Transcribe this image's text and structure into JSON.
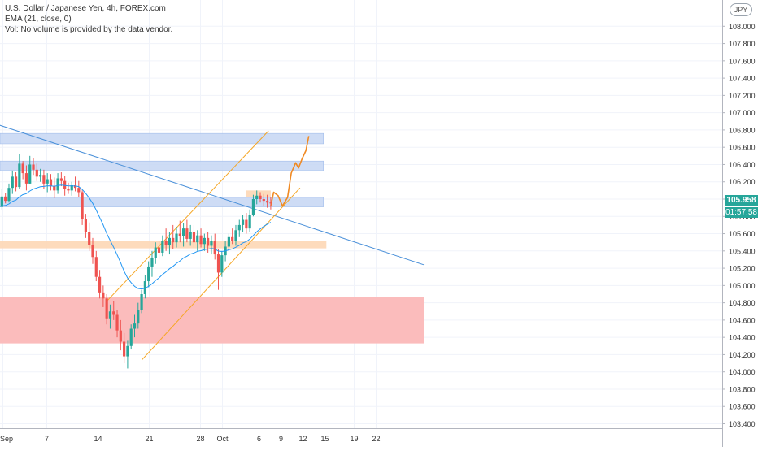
{
  "legend": {
    "title": "U.S. Dollar / Japanese Yen, 4h, FOREX.com",
    "ema": "EMA (21, close, 0)",
    "vol": "Vol: No volume is provided by the data vendor."
  },
  "currency_badge": "JPY",
  "last_price": "105.958",
  "countdown": "01:57:58",
  "colors": {
    "up": "#26a69a",
    "down": "#ef5350",
    "ema": "#2196f3",
    "trendline": "#4a90d9",
    "channel": "#f5a623",
    "resistance_zone": "#c9d9f5",
    "support_zone": "#fdd7b5",
    "demand_zone": "#fbb8b8",
    "projection": "#f08a24"
  },
  "chart_data": {
    "type": "candlestick",
    "symbol": "USDJPY",
    "timeframe": "4h",
    "x_tick_labels": [
      "Sep",
      "7",
      "14",
      "21",
      "28",
      "Oct",
      "6",
      "9",
      "12",
      "15",
      "19",
      "22"
    ],
    "x_ticks_day_index": [
      0,
      6,
      13,
      20,
      27,
      30,
      35,
      38,
      41,
      44,
      48,
      51
    ],
    "y_range": [
      103.3,
      108.25
    ],
    "y_ticks": [
      "108.000",
      "107.800",
      "107.600",
      "107.400",
      "107.200",
      "107.000",
      "106.800",
      "106.600",
      "106.400",
      "106.200",
      "106.000",
      "105.800",
      "105.600",
      "105.400",
      "105.200",
      "105.000",
      "104.800",
      "104.600",
      "104.400",
      "104.200",
      "104.000",
      "103.800",
      "103.600",
      "103.400"
    ],
    "zones": [
      {
        "kind": "resistance",
        "y_low": 106.64,
        "y_high": 106.76,
        "x_end_day": 43.8
      },
      {
        "kind": "resistance",
        "y_low": 106.33,
        "y_high": 106.44,
        "x_end_day": 43.8
      },
      {
        "kind": "resistance",
        "y_low": 105.91,
        "y_high": 106.02,
        "x_end_day": 43.8
      },
      {
        "kind": "support",
        "y_low": 105.43,
        "y_high": 105.52,
        "x_end_day": 44.2
      },
      {
        "kind": "supply",
        "y_low": 106.02,
        "y_high": 106.1,
        "x_start_day": 33.2,
        "x_end_day": 36.6
      },
      {
        "kind": "demand",
        "y_low": 104.33,
        "y_high": 104.87,
        "x_end_day": 57.5
      }
    ],
    "trendline": {
      "from": [
        -0.6,
        106.86
      ],
      "to": [
        57.5,
        105.24
      ]
    },
    "channel": {
      "upper": {
        "from": [
          14.1,
          104.81
        ],
        "to": [
          36.3,
          106.79
        ]
      },
      "lower": {
        "from": [
          19.0,
          104.14
        ],
        "to": [
          40.6,
          106.13
        ]
      }
    },
    "projection_path": [
      [
        36.6,
        105.92
      ],
      [
        37.0,
        106.08
      ],
      [
        37.6,
        106.04
      ],
      [
        38.2,
        105.92
      ],
      [
        38.9,
        106.02
      ],
      [
        39.4,
        106.3
      ],
      [
        40.0,
        106.42
      ],
      [
        40.4,
        106.36
      ],
      [
        40.9,
        106.47
      ],
      [
        41.4,
        106.56
      ],
      [
        41.8,
        106.73
      ]
    ],
    "candles_ohlc": [
      [
        105.85,
        105.98,
        105.81,
        105.91
      ],
      [
        105.91,
        106.12,
        105.88,
        106.03
      ],
      [
        106.03,
        106.07,
        105.95,
        105.98
      ],
      [
        105.98,
        106.18,
        105.96,
        106.13
      ],
      [
        106.13,
        106.33,
        106.06,
        106.26
      ],
      [
        106.26,
        106.31,
        106.09,
        106.14
      ],
      [
        106.14,
        106.52,
        106.12,
        106.41
      ],
      [
        106.41,
        106.44,
        106.23,
        106.3
      ],
      [
        106.3,
        106.39,
        106.1,
        106.18
      ],
      [
        106.18,
        106.5,
        106.17,
        106.4
      ],
      [
        106.4,
        106.47,
        106.28,
        106.34
      ],
      [
        106.34,
        106.41,
        106.21,
        106.26
      ],
      [
        106.26,
        106.35,
        106.2,
        106.28
      ],
      [
        106.28,
        106.34,
        106.12,
        106.18
      ],
      [
        106.18,
        106.3,
        106.08,
        106.23
      ],
      [
        106.23,
        106.29,
        106.1,
        106.15
      ],
      [
        106.15,
        106.25,
        106.01,
        106.1
      ],
      [
        106.1,
        106.3,
        106.06,
        106.24
      ],
      [
        106.24,
        106.31,
        106.15,
        106.21
      ],
      [
        106.21,
        106.27,
        106.04,
        106.12
      ],
      [
        106.12,
        106.19,
        106.06,
        106.1
      ],
      [
        106.1,
        106.2,
        106.04,
        106.16
      ],
      [
        106.16,
        106.26,
        106.09,
        106.13
      ],
      [
        106.13,
        106.21,
        106.02,
        106.08
      ],
      [
        106.08,
        106.1,
        105.7,
        105.77
      ],
      [
        105.77,
        105.83,
        105.55,
        105.62
      ],
      [
        105.62,
        105.73,
        105.4,
        105.47
      ],
      [
        105.47,
        105.55,
        105.25,
        105.33
      ],
      [
        105.33,
        105.4,
        105.05,
        105.1
      ],
      [
        105.1,
        105.18,
        104.85,
        104.92
      ],
      [
        104.92,
        105.0,
        104.75,
        104.85
      ],
      [
        104.85,
        104.9,
        104.55,
        104.62
      ],
      [
        104.62,
        104.78,
        104.5,
        104.7
      ],
      [
        104.7,
        104.82,
        104.6,
        104.66
      ],
      [
        104.66,
        104.72,
        104.4,
        104.48
      ],
      [
        104.48,
        104.6,
        104.25,
        104.35
      ],
      [
        104.35,
        104.45,
        104.1,
        104.18
      ],
      [
        104.18,
        104.36,
        104.04,
        104.3
      ],
      [
        104.3,
        104.55,
        104.26,
        104.5
      ],
      [
        104.5,
        104.66,
        104.4,
        104.56
      ],
      [
        104.56,
        104.8,
        104.5,
        104.72
      ],
      [
        104.72,
        104.95,
        104.68,
        104.9
      ],
      [
        104.9,
        105.12,
        104.85,
        105.05
      ],
      [
        105.05,
        105.28,
        104.98,
        105.22
      ],
      [
        105.22,
        105.4,
        105.1,
        105.32
      ],
      [
        105.32,
        105.5,
        105.25,
        105.44
      ],
      [
        105.44,
        105.52,
        105.3,
        105.38
      ],
      [
        105.38,
        105.58,
        105.34,
        105.52
      ],
      [
        105.52,
        105.66,
        105.4,
        105.47
      ],
      [
        105.47,
        105.62,
        105.36,
        105.55
      ],
      [
        105.55,
        105.7,
        105.42,
        105.5
      ],
      [
        105.5,
        105.68,
        105.44,
        105.6
      ],
      [
        105.6,
        105.75,
        105.5,
        105.57
      ],
      [
        105.57,
        105.72,
        105.45,
        105.66
      ],
      [
        105.66,
        105.76,
        105.5,
        105.54
      ],
      [
        105.54,
        105.7,
        105.46,
        105.62
      ],
      [
        105.62,
        105.7,
        105.44,
        105.5
      ],
      [
        105.5,
        105.64,
        105.4,
        105.58
      ],
      [
        105.58,
        105.66,
        105.44,
        105.48
      ],
      [
        105.48,
        105.6,
        105.4,
        105.55
      ],
      [
        105.55,
        105.62,
        105.38,
        105.46
      ],
      [
        105.46,
        105.58,
        105.36,
        105.52
      ],
      [
        105.52,
        105.6,
        105.3,
        105.36
      ],
      [
        105.36,
        105.42,
        104.95,
        105.15
      ],
      [
        105.15,
        105.4,
        105.1,
        105.35
      ],
      [
        105.35,
        105.52,
        105.28,
        105.45
      ],
      [
        105.45,
        105.6,
        105.4,
        105.56
      ],
      [
        105.56,
        105.66,
        105.48,
        105.52
      ],
      [
        105.52,
        105.7,
        105.46,
        105.64
      ],
      [
        105.64,
        105.76,
        105.56,
        105.7
      ],
      [
        105.7,
        105.82,
        105.62,
        105.76
      ],
      [
        105.76,
        105.84,
        105.6,
        105.66
      ],
      [
        105.66,
        105.88,
        105.62,
        105.82
      ],
      [
        105.82,
        106.05,
        105.8,
        106.0
      ],
      [
        106.0,
        106.1,
        105.94,
        106.04
      ],
      [
        106.04,
        106.08,
        105.96,
        106.0
      ],
      [
        106.0,
        106.06,
        105.92,
        105.98
      ],
      [
        105.98,
        106.05,
        105.9,
        105.96
      ],
      [
        105.96,
        106.02,
        105.88,
        105.95
      ]
    ],
    "ema_period": 21
  }
}
